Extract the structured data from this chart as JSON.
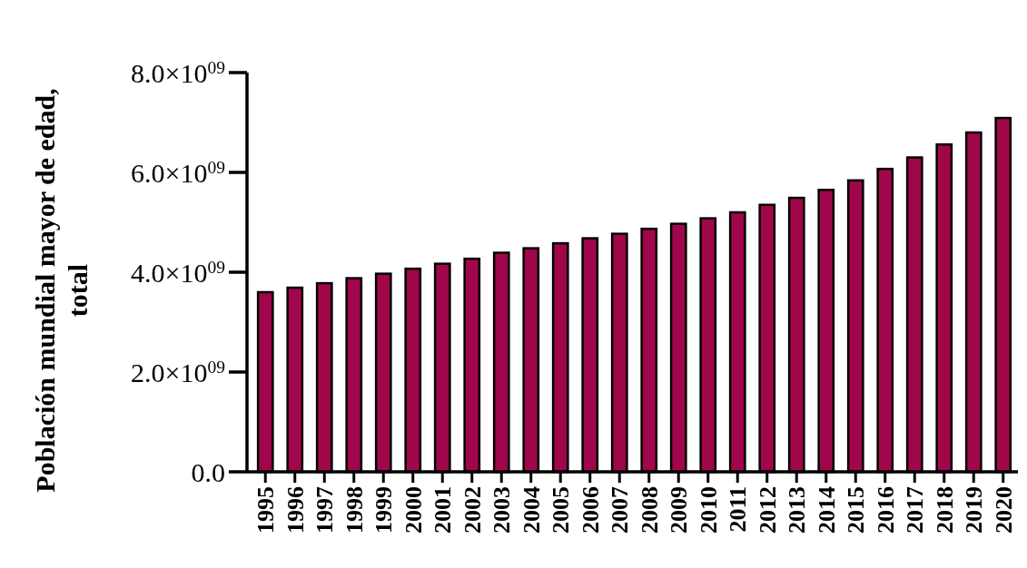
{
  "chart_data": {
    "type": "bar",
    "ylabel": "Población mundial mayor de edad,\ntotal",
    "categories": [
      "1995",
      "1996",
      "1997",
      "1998",
      "1999",
      "2000",
      "2001",
      "2002",
      "2003",
      "2004",
      "2005",
      "2006",
      "2007",
      "2008",
      "2009",
      "2010",
      "2011",
      "2012",
      "2013",
      "2014",
      "2015",
      "2016",
      "2017",
      "2018",
      "2019",
      "2020"
    ],
    "values": [
      3600000000.0,
      3690000000.0,
      3780000000.0,
      3880000000.0,
      3970000000.0,
      4070000000.0,
      4170000000.0,
      4270000000.0,
      4390000000.0,
      4480000000.0,
      4580000000.0,
      4680000000.0,
      4770000000.0,
      4870000000.0,
      4970000000.0,
      5080000000.0,
      5200000000.0,
      5350000000.0,
      5490000000.0,
      5650000000.0,
      5840000000.0,
      6070000000.0,
      6300000000.0,
      6560000000.0,
      6800000000.0,
      7090000000.0
    ],
    "color": "#a0064a",
    "ylim": [
      0,
      8000000000.0
    ],
    "yticks": [
      {
        "value": 0,
        "label": "0.0"
      },
      {
        "value": 2000000000.0,
        "label": "2.0×10$^{09}$"
      },
      {
        "value": 4000000000.0,
        "label": "4.0×10$^{09}$"
      },
      {
        "value": 6000000000.0,
        "label": "6.0×10$^{09}$"
      },
      {
        "value": 8000000000.0,
        "label": "8.0×10$^{09}$"
      }
    ],
    "grid": false
  }
}
